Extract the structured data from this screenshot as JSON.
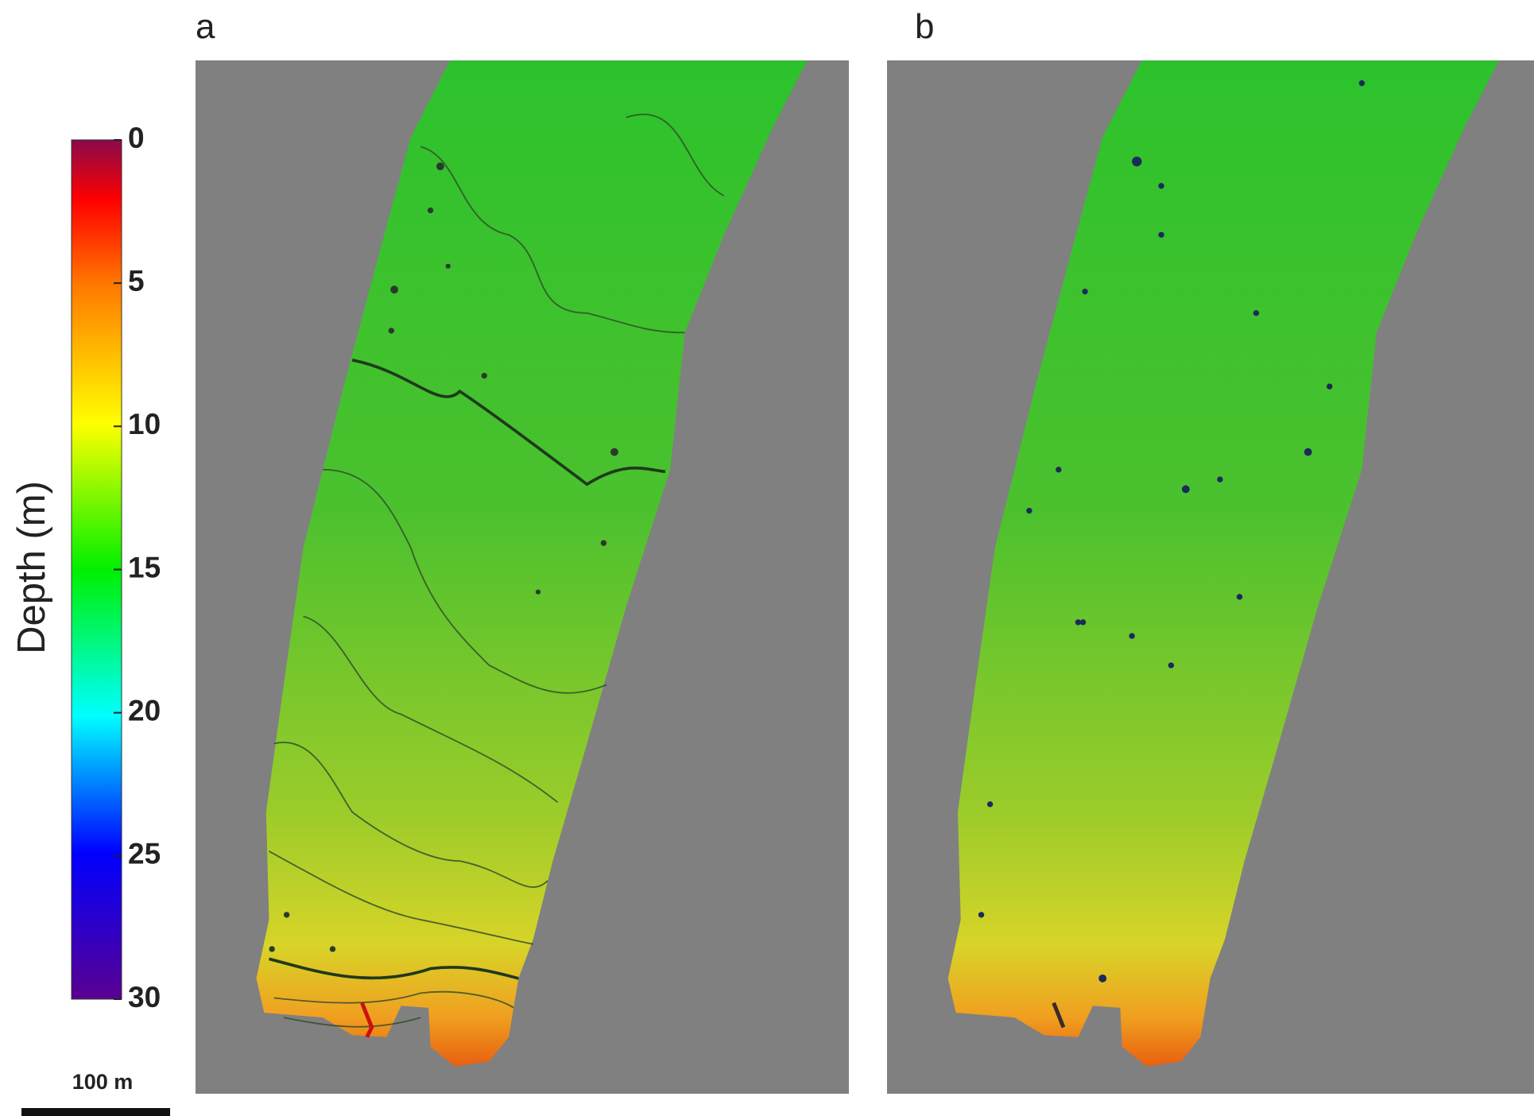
{
  "panels": [
    {
      "label": "a"
    },
    {
      "label": "b"
    }
  ],
  "colorbar": {
    "label": "Depth (m)",
    "lim": [
      0,
      30
    ],
    "ticks": [
      0,
      5,
      10,
      15,
      20,
      25,
      30
    ]
  },
  "scale_bar": {
    "label": "100 m"
  }
}
